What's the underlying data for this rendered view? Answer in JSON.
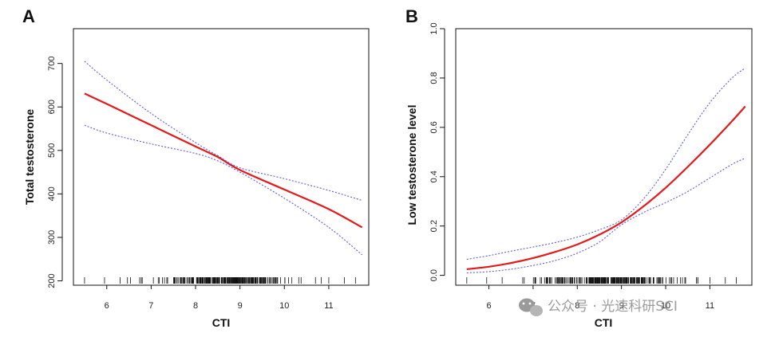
{
  "chart_data": [
    {
      "panel": "A",
      "type": "line",
      "title": "",
      "xlabel": "CTI",
      "ylabel": "Total testosterone",
      "xlim": [
        5.25,
        11.9
      ],
      "ylim": [
        190,
        780
      ],
      "xticks": [
        6,
        7,
        8,
        9,
        10,
        11
      ],
      "yticks": [
        200,
        300,
        400,
        500,
        600,
        700
      ],
      "grid": false,
      "series": [
        {
          "name": "fit",
          "style": "solid-red",
          "x": [
            5.5,
            6,
            7,
            8,
            8.5,
            9,
            10,
            11,
            11.75
          ],
          "y": [
            631,
            607,
            558,
            509,
            485,
            455,
            410,
            365,
            323
          ]
        },
        {
          "name": "upper CI",
          "style": "dotted-blue",
          "x": [
            5.5,
            6,
            7,
            8,
            8.5,
            9,
            10,
            11,
            11.75
          ],
          "y": [
            705,
            662,
            585,
            518,
            488,
            460,
            435,
            408,
            385
          ]
        },
        {
          "name": "lower CI",
          "style": "dotted-blue",
          "x": [
            5.5,
            6,
            7,
            8,
            8.5,
            9,
            10,
            11,
            11.75
          ],
          "y": [
            558,
            540,
            515,
            493,
            476,
            450,
            390,
            323,
            260
          ]
        }
      ],
      "rug_seed": 11
    },
    {
      "panel": "B",
      "type": "line",
      "title": "",
      "xlabel": "CTI",
      "ylabel": "Low testosterone level",
      "xlim": [
        5.25,
        11.95
      ],
      "ylim": [
        -0.04,
        1.0
      ],
      "xticks": [
        6,
        7,
        8,
        9,
        10,
        11
      ],
      "yticks": [
        "0.0",
        "0.2",
        "0.4",
        "0.6",
        "0.8",
        "1.0"
      ],
      "grid": false,
      "series": [
        {
          "name": "fit",
          "style": "solid-red",
          "x": [
            5.5,
            6,
            6.5,
            7,
            7.5,
            8,
            8.5,
            9,
            9.5,
            10,
            10.5,
            11,
            11.5,
            11.8
          ],
          "y": [
            0.025,
            0.035,
            0.05,
            0.07,
            0.095,
            0.125,
            0.165,
            0.215,
            0.28,
            0.355,
            0.44,
            0.53,
            0.625,
            0.685
          ]
        },
        {
          "name": "upper CI",
          "style": "dotted-blue",
          "x": [
            5.5,
            6,
            6.5,
            7,
            7.5,
            8,
            8.5,
            9,
            9.5,
            10,
            10.5,
            11,
            11.5,
            11.8
          ],
          "y": [
            0.065,
            0.08,
            0.098,
            0.115,
            0.133,
            0.155,
            0.185,
            0.225,
            0.31,
            0.43,
            0.57,
            0.7,
            0.8,
            0.84
          ]
        },
        {
          "name": "lower CI",
          "style": "dotted-blue",
          "x": [
            5.5,
            6,
            6.5,
            7,
            7.5,
            8,
            8.5,
            9,
            9.5,
            10,
            10.5,
            11,
            11.5,
            11.8
          ],
          "y": [
            0.01,
            0.015,
            0.025,
            0.04,
            0.06,
            0.09,
            0.135,
            0.205,
            0.255,
            0.295,
            0.34,
            0.395,
            0.45,
            0.475
          ]
        }
      ],
      "rug_seed": 23
    }
  ],
  "watermark": {
    "text": "公众号 · 光速科研SCI",
    "icon": "wechat-icon"
  }
}
